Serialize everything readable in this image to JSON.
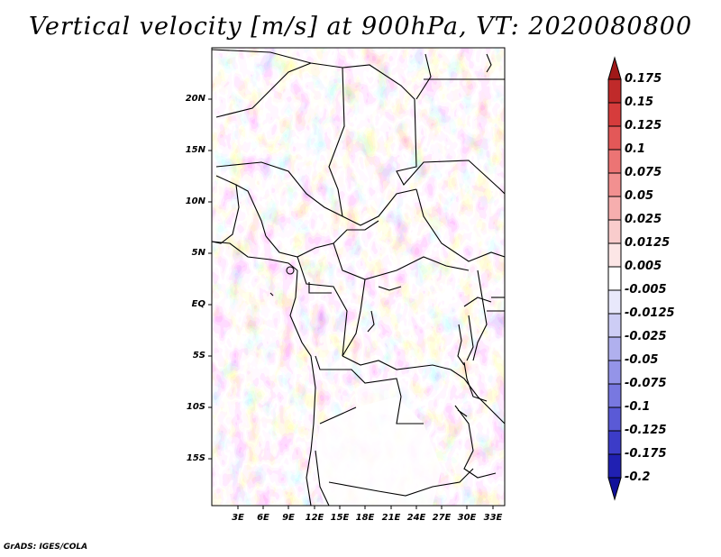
{
  "title": "Vertical velocity [m/s] at 900hPa, VT: 2020080800",
  "credit": "GrADS: IGES/COLA",
  "map": {
    "lat_labels": [
      "20N",
      "15N",
      "10N",
      "5N",
      "EQ",
      "5S",
      "10S",
      "15S"
    ],
    "lon_labels": [
      "3E",
      "6E",
      "9E",
      "12E",
      "15E",
      "18E",
      "21E",
      "24E",
      "27E",
      "30E",
      "33E"
    ]
  },
  "colorbar": {
    "labels": [
      "0.175",
      "0.15",
      "0.125",
      "0.1",
      "0.075",
      "0.05",
      "0.025",
      "0.0125",
      "0.005",
      "-0.005",
      "-0.0125",
      "-0.025",
      "-0.05",
      "-0.075",
      "-0.1",
      "-0.125",
      "-0.175",
      "-0.2"
    ],
    "colors": [
      "#a01818",
      "#c02a2a",
      "#d63c3c",
      "#e35858",
      "#ec7474",
      "#f29090",
      "#f6aeae",
      "#f9cccc",
      "#fce6e6",
      "#ffffff",
      "#e8e8fb",
      "#cdcdf5",
      "#b0b0ee",
      "#9494e8",
      "#7878e0",
      "#5a5ad6",
      "#3c3cc8",
      "#2020b2",
      "#10109a"
    ]
  }
}
